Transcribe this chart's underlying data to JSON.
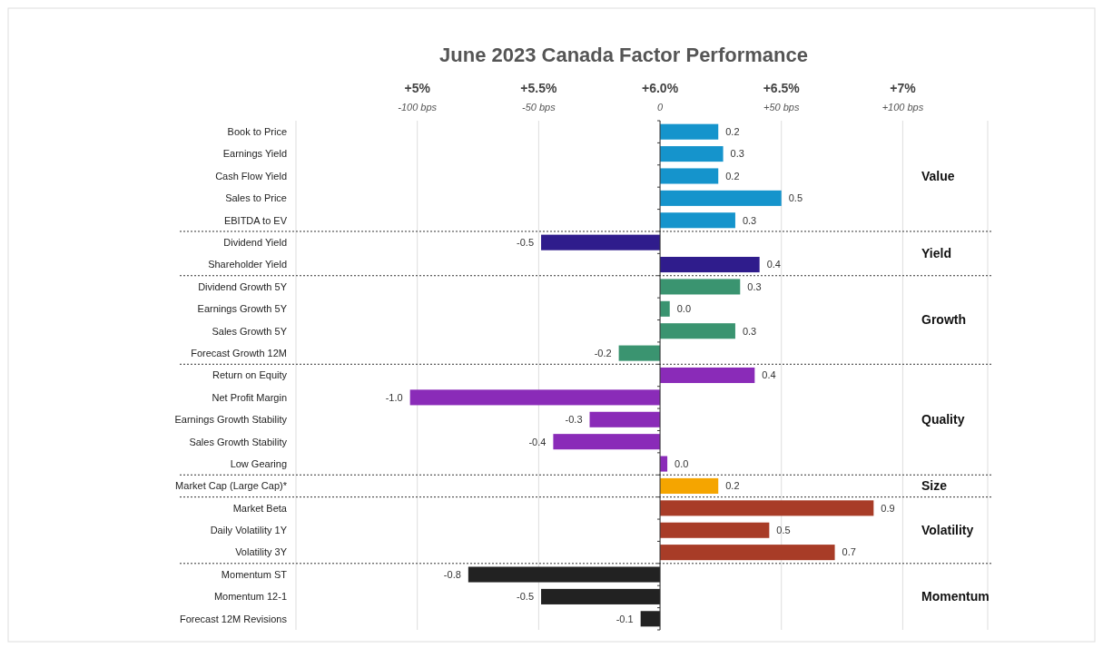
{
  "chart_data": {
    "type": "bar",
    "orientation": "horizontal",
    "title": "June 2023 Canada Factor Performance",
    "categories": [
      "Book to Price",
      "Earnings Yield",
      "Cash Flow Yield",
      "Sales to Price",
      "EBITDA to EV",
      "Dividend Yield",
      "Shareholder Yield",
      "Dividend Growth 5Y",
      "Earnings Growth 5Y",
      "Sales Growth 5Y",
      "Forecast Growth 12M",
      "Return on Equity",
      "Net Profit Margin",
      "Earnings Growth Stability",
      "Sales Growth Stability",
      "Low Gearing",
      "Market Cap (Large Cap)*",
      "Market Beta",
      "Daily Volatility 1Y",
      "Volatility 3Y",
      "Momentum ST",
      "Momentum 12-1",
      "Forecast 12M Revisions"
    ],
    "base": [
      6,
      6,
      6,
      6,
      6,
      6,
      6,
      6,
      6,
      6,
      6,
      6,
      6,
      6,
      6,
      6,
      6,
      6,
      6,
      6,
      6,
      6,
      6
    ],
    "values": [
      0.24,
      0.26,
      0.24,
      0.5,
      0.31,
      -0.49,
      0.41,
      0.33,
      0.04,
      0.31,
      -0.17,
      0.39,
      -1.03,
      -0.29,
      -0.44,
      0.03,
      0.24,
      0.88,
      0.45,
      0.72,
      -0.79,
      -0.49,
      -0.08
    ],
    "value_labels": [
      "0.2",
      "0.3",
      "0.2",
      "0.5",
      "0.3",
      "-0.5",
      "0.4",
      "0.3",
      "0.0",
      "0.3",
      "-0.2",
      "0.4",
      "-1.0",
      "-0.3",
      "-0.4",
      "0.0",
      "0.2",
      "0.9",
      "0.5",
      "0.7",
      "-0.8",
      "-0.5",
      "-0.1"
    ],
    "colors": [
      "#1594cc",
      "#1594cc",
      "#1594cc",
      "#1594cc",
      "#1594cc",
      "#2f1c8c",
      "#2f1c8c",
      "#3a9470",
      "#3a9470",
      "#3a9470",
      "#3a9470",
      "#8a2bb8",
      "#8a2bb8",
      "#8a2bb8",
      "#8a2bb8",
      "#8a2bb8",
      "#f5a500",
      "#a83c27",
      "#a83c27",
      "#a83c27",
      "#222222",
      "#222222",
      "#222222"
    ],
    "xlim": [
      4.5,
      7.35
    ],
    "xticks": [
      {
        "value": 5,
        "label": "+5%"
      },
      {
        "value": 5.5,
        "label": "+5.5%"
      },
      {
        "value": 6,
        "label": "+6.0%"
      },
      {
        "value": 6.5,
        "label": "+6.5%"
      },
      {
        "value": 7,
        "label": "+7%"
      }
    ],
    "x2lim": [
      -150,
      135
    ],
    "x2ticks": [
      {
        "value": -100,
        "label": "-100 bps"
      },
      {
        "value": -50,
        "label": "-50 bps"
      },
      0,
      {
        "value": 50,
        "label": "+50 bps"
      },
      {
        "value": 100,
        "label": "+100 bps"
      }
    ],
    "grid": "x",
    "annotations": [
      "Value",
      "Yield",
      "Growth",
      "Quality",
      "Size",
      "Volatility",
      "Momentum"
    ]
  }
}
